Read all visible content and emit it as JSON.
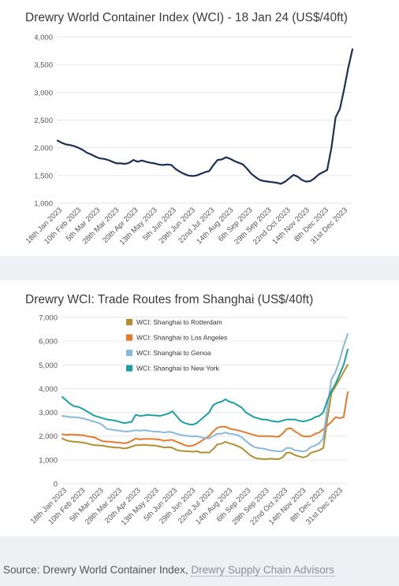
{
  "chart_data": [
    {
      "type": "line",
      "title": "Drewry World Container Index (WCI) - 18 Jan 24 (US$/40ft)",
      "ylim": [
        1000,
        4000
      ],
      "yticks": [
        1000,
        1500,
        2000,
        2500,
        3000,
        3500,
        4000
      ],
      "ytick_labels": [
        "1,000",
        "1,500",
        "2,000",
        "2,500",
        "3,000",
        "3,500",
        "4,000"
      ],
      "x_tick_labels": [
        "18th Jan 2023",
        "10th Feb 2023",
        "5th Mar 2023",
        "28th Mar 2023",
        "20th Apr 2023",
        "13th May 2023",
        "5th Jun 2023",
        "29th Jun 2023",
        "22nd Jul 2023",
        "14th Aug 2023",
        "6th Sep 2023",
        "29th Sep 2023",
        "22nd Oct 2023",
        "14th Nov 2023",
        "8th Dec 2023",
        "31st Dec 2023"
      ],
      "grid": true,
      "series": [
        {
          "color": "#1b2f57",
          "values": [
            2130,
            2090,
            2060,
            2050,
            2030,
            2000,
            1960,
            1910,
            1880,
            1840,
            1810,
            1800,
            1780,
            1750,
            1720,
            1720,
            1710,
            1730,
            1780,
            1750,
            1770,
            1750,
            1730,
            1720,
            1700,
            1690,
            1700,
            1690,
            1620,
            1570,
            1530,
            1500,
            1490,
            1500,
            1530,
            1560,
            1580,
            1690,
            1780,
            1790,
            1830,
            1800,
            1760,
            1730,
            1700,
            1620,
            1530,
            1470,
            1420,
            1400,
            1390,
            1380,
            1370,
            1350,
            1390,
            1450,
            1510,
            1480,
            1420,
            1390,
            1400,
            1450,
            1520,
            1560,
            1600,
            2000,
            2550,
            2700,
            3050,
            3450,
            3780
          ]
        }
      ]
    },
    {
      "type": "line",
      "title": "Drewry WCI: Trade Routes from Shanghai (US$/40ft)",
      "ylim": [
        0,
        7000
      ],
      "yticks": [
        0,
        1000,
        2000,
        3000,
        4000,
        5000,
        6000,
        7000
      ],
      "ytick_labels": [
        "0",
        "1,000",
        "2,000",
        "3,000",
        "4,000",
        "5,000",
        "6,000",
        "7,000"
      ],
      "x_tick_labels": [
        "18th Jan 2023",
        "10th Feb 2023",
        "5th Mar 2023",
        "28th Mar 2023",
        "20th Apr 2023",
        "13th May 2023",
        "5th Jun 2023",
        "29th Jun 2023",
        "22nd Jul 2023",
        "14th Aug 2023",
        "6th Sep 2023",
        "29th Sep 2023",
        "22nd Oct 2023",
        "14th Nov 2023",
        "8th Dec 2023",
        "31st Dec 2023"
      ],
      "grid": true,
      "legend": "top-center",
      "series": [
        {
          "name": "WCI: Shanghai to Rotterdam",
          "color": "#b38d2e",
          "values": [
            1900,
            1820,
            1780,
            1760,
            1750,
            1730,
            1700,
            1650,
            1620,
            1610,
            1600,
            1560,
            1540,
            1520,
            1520,
            1480,
            1500,
            1560,
            1620,
            1620,
            1640,
            1620,
            1610,
            1600,
            1560,
            1520,
            1540,
            1510,
            1420,
            1380,
            1370,
            1360,
            1340,
            1370,
            1300,
            1320,
            1300,
            1450,
            1650,
            1680,
            1760,
            1700,
            1650,
            1580,
            1500,
            1350,
            1200,
            1100,
            1050,
            1040,
            1030,
            1050,
            1040,
            1030,
            1100,
            1300,
            1300,
            1200,
            1150,
            1100,
            1150,
            1300,
            1350,
            1400,
            1500,
            2700,
            3800,
            4100,
            4400,
            4700,
            5000
          ]
        },
        {
          "name": "WCI: Shanghai to Los Angeles",
          "color": "#e7782b",
          "values": [
            2080,
            2050,
            2070,
            2060,
            2050,
            2040,
            2000,
            1970,
            1940,
            1850,
            1780,
            1770,
            1760,
            1740,
            1730,
            1700,
            1720,
            1800,
            1900,
            1860,
            1880,
            1880,
            1880,
            1870,
            1850,
            1800,
            1830,
            1840,
            1760,
            1700,
            1620,
            1580,
            1600,
            1680,
            1780,
            1900,
            2000,
            2200,
            2350,
            2400,
            2400,
            2320,
            2280,
            2250,
            2200,
            2150,
            2100,
            2050,
            2000,
            2000,
            2000,
            2000,
            1980,
            1970,
            2100,
            2300,
            2340,
            2200,
            2100,
            2000,
            1980,
            2000,
            2100,
            2150,
            2300,
            2450,
            2600,
            2800,
            2750,
            2800,
            3850
          ]
        },
        {
          "name": "WCI: Shanghai to Genoa",
          "color": "#86b7dd",
          "values": [
            2850,
            2830,
            2800,
            2800,
            2780,
            2750,
            2700,
            2650,
            2600,
            2550,
            2450,
            2300,
            2280,
            2250,
            2230,
            2200,
            2200,
            2220,
            2250,
            2230,
            2250,
            2230,
            2200,
            2190,
            2180,
            2150,
            2180,
            2160,
            2100,
            2050,
            2030,
            2000,
            1990,
            2000,
            1950,
            1920,
            1900,
            2000,
            2100,
            2100,
            2150,
            2100,
            2080,
            2050,
            1950,
            1800,
            1650,
            1550,
            1500,
            1480,
            1450,
            1400,
            1380,
            1360,
            1370,
            1500,
            1500,
            1400,
            1380,
            1350,
            1400,
            1550,
            1600,
            1700,
            1900,
            3200,
            4400,
            4700,
            5200,
            5800,
            6300
          ]
        },
        {
          "name": "WCI: Shanghai to New York",
          "color": "#1aa0a0",
          "values": [
            3650,
            3500,
            3350,
            3250,
            3230,
            3150,
            3050,
            2950,
            2850,
            2800,
            2750,
            2700,
            2680,
            2650,
            2600,
            2550,
            2570,
            2600,
            2900,
            2850,
            2870,
            2900,
            2880,
            2870,
            2850,
            2900,
            2950,
            3050,
            2850,
            2650,
            2550,
            2500,
            2480,
            2550,
            2700,
            2850,
            3000,
            3300,
            3400,
            3450,
            3550,
            3450,
            3400,
            3300,
            3200,
            3000,
            2900,
            2800,
            2750,
            2700,
            2700,
            2650,
            2620,
            2600,
            2650,
            2700,
            2700,
            2700,
            2650,
            2620,
            2650,
            2700,
            2800,
            2850,
            3000,
            3500,
            3900,
            4200,
            4600,
            5000,
            5650
          ]
        }
      ]
    }
  ],
  "source": {
    "prefix": "Source: Drewry World Container Index, ",
    "link": "Drewry Supply Chain Advisors"
  }
}
